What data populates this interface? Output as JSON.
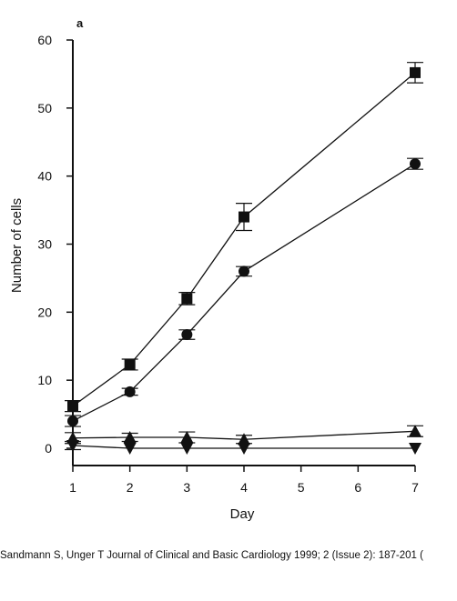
{
  "citation": "Sandmann S, Unger T Journal of Clinical and Basic Cardiology 1999; 2 (Issue 2): 187-201 (",
  "chart_data": {
    "type": "line",
    "panel_label": "a",
    "title": "",
    "xlabel": "Day",
    "ylabel": "Number of cells",
    "xlim": [
      1,
      7
    ],
    "ylim": [
      0,
      60
    ],
    "xticks": [
      1,
      2,
      3,
      4,
      5,
      6,
      7
    ],
    "yticks": [
      0,
      10,
      20,
      30,
      40,
      50,
      60
    ],
    "grid": false,
    "legend": "none",
    "series": [
      {
        "marker": "square",
        "x": [
          1,
          2,
          3,
          4,
          7
        ],
        "y": [
          6.2,
          12.3,
          22.0,
          34.0,
          55.2
        ],
        "error": [
          0.8,
          0.8,
          0.9,
          2.0,
          1.5
        ]
      },
      {
        "marker": "circle",
        "x": [
          1,
          2,
          3,
          4,
          7
        ],
        "y": [
          4.0,
          8.3,
          16.7,
          26.0,
          41.8
        ],
        "error": [
          0.8,
          0.5,
          0.7,
          0.7,
          0.8
        ]
      },
      {
        "marker": "triangle-up",
        "x": [
          1,
          2,
          3,
          4,
          7
        ],
        "y": [
          1.5,
          1.6,
          1.6,
          1.3,
          2.5
        ],
        "error": [
          0.8,
          0.6,
          0.8,
          0.6,
          0.8
        ]
      },
      {
        "marker": "triangle-down",
        "x": [
          1,
          2,
          3,
          4,
          7
        ],
        "y": [
          0.4,
          0.0,
          0.0,
          0.0,
          0.0
        ],
        "error": [
          0.6,
          0.0,
          0.0,
          0.0,
          0.0
        ]
      }
    ]
  }
}
